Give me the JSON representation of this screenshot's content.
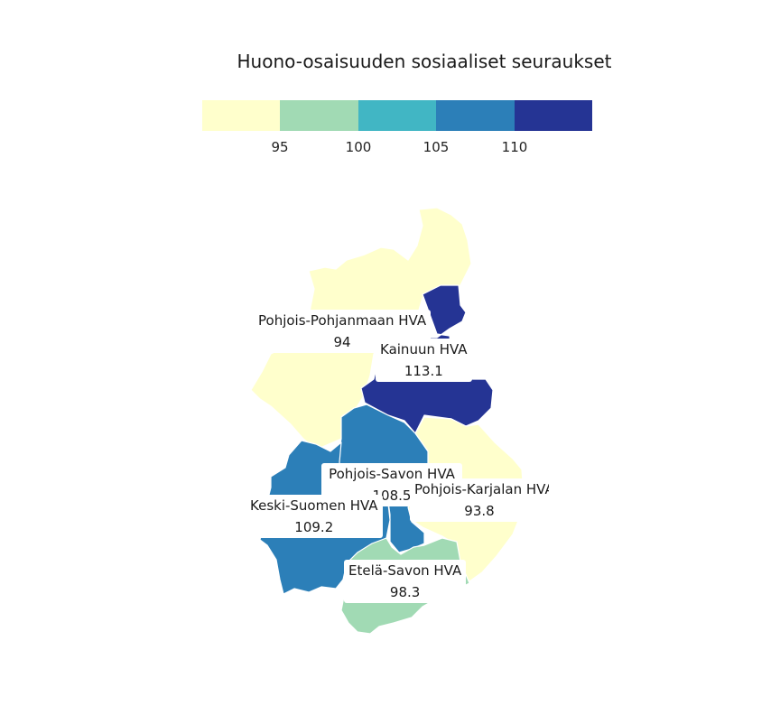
{
  "title": "Huono-osaisuuden sosiaaliset seuraukset",
  "legend": {
    "colors": [
      "#ffffcc",
      "#a1dab4",
      "#41b6c4",
      "#2c7fb8",
      "#253494"
    ],
    "ticks": [
      "95",
      "100",
      "105",
      "110"
    ]
  },
  "regions": [
    {
      "name": "Pohjois-Pohjanmaan HVA",
      "value": "94"
    },
    {
      "name": "Kainuun HVA",
      "value": "113.1"
    },
    {
      "name": "Pohjois-Savon HVA",
      "value": "108.5"
    },
    {
      "name": "Pohjois-Karjalan HVA",
      "value": "93.8"
    },
    {
      "name": "Keski-Suomen HVA",
      "value": "109.2"
    },
    {
      "name": "Etelä-Savon HVA",
      "value": "98.3"
    }
  ]
}
